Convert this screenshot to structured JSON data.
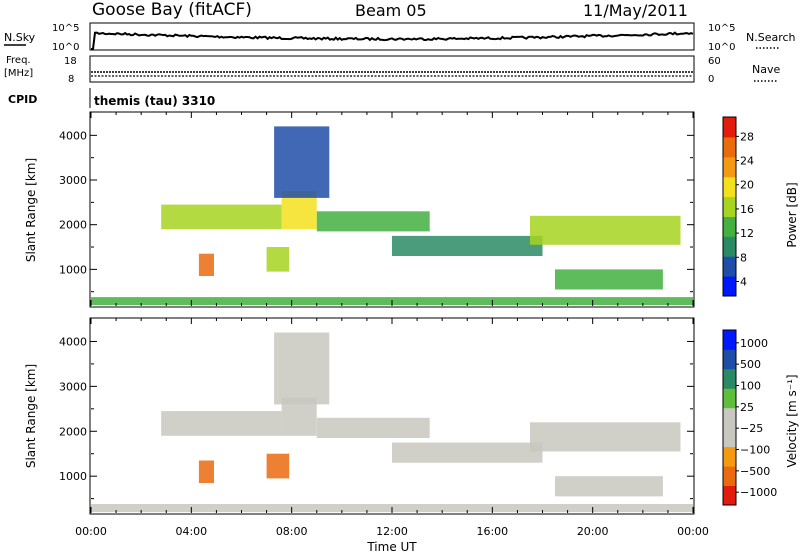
{
  "header": {
    "station": "Goose Bay (fitACF)",
    "beam": "Beam 05",
    "date": "11/May/2011"
  },
  "strips": {
    "nsky": {
      "label": "N.Sky",
      "ticks": [
        "10^5",
        "10^0"
      ],
      "right_label": "N.Search",
      "right_ticks": [
        "10^5",
        "10^0"
      ]
    },
    "freq": {
      "label_line1": "Freq.",
      "label_line2": "[MHz]",
      "ticks": [
        "18",
        "8"
      ],
      "right_label": "Nave",
      "right_ticks": [
        "60",
        "0"
      ]
    },
    "cpid": {
      "label": "CPID",
      "value": "themis (tau) 3310"
    }
  },
  "colors": {
    "power": [
      "#0018ff",
      "#1f4ea8",
      "#2b8a66",
      "#43b03f",
      "#a6d41f",
      "#f3e11c",
      "#f39a12",
      "#ea6a0e",
      "#e31b0c"
    ],
    "velocity": [
      "#e31b0c",
      "#ea6a0e",
      "#f39a12",
      "#c8c8c0",
      "#c8c8c0",
      "#5fbe3a",
      "#2b8a66",
      "#1f4ea8",
      "#0018ff"
    ],
    "ground_scatter": "#c8c8c0"
  },
  "chart_data": [
    {
      "type": "heatmap",
      "title": "Power",
      "xlabel": "",
      "ylabel": "Slant Range [km]",
      "xlim_hours": [
        0,
        24
      ],
      "ylim_km": [
        180,
        4500
      ],
      "yticks": [
        "4000",
        "3000",
        "2000",
        "1000"
      ],
      "yticks_km": [
        4000,
        3000,
        2000,
        1000
      ],
      "colorbar": {
        "label": "Power [dB]",
        "ticks": [
          "28",
          "24",
          "20",
          "16",
          "12",
          "8",
          "4"
        ],
        "range": [
          0,
          30
        ]
      },
      "scatter_regions": [
        {
          "t_start": 2.8,
          "t_end": 7.6,
          "range_start": 1900,
          "range_end": 2450,
          "power": 14
        },
        {
          "t_start": 7.6,
          "t_end": 9.0,
          "range_start": 1900,
          "range_end": 2750,
          "power": 18
        },
        {
          "t_start": 9.0,
          "t_end": 13.5,
          "range_start": 1850,
          "range_end": 2300,
          "power": 12
        },
        {
          "t_start": 12.0,
          "t_end": 18.0,
          "range_start": 1300,
          "range_end": 1750,
          "power": 8
        },
        {
          "t_start": 17.5,
          "t_end": 23.5,
          "range_start": 1550,
          "range_end": 2200,
          "power": 16
        },
        {
          "t_start": 18.5,
          "t_end": 22.8,
          "range_start": 550,
          "range_end": 1000,
          "power": 10
        },
        {
          "t_start": 4.3,
          "t_end": 4.9,
          "range_start": 850,
          "range_end": 1350,
          "power": 26
        },
        {
          "t_start": 7.0,
          "t_end": 7.9,
          "range_start": 950,
          "range_end": 1500,
          "power": 14
        },
        {
          "t_start": 7.3,
          "t_end": 9.5,
          "range_start": 2600,
          "range_end": 4200,
          "power": 6
        },
        {
          "t_start": 0.0,
          "t_end": 24.0,
          "range_start": 200,
          "range_end": 380,
          "power": 10
        }
      ]
    },
    {
      "type": "heatmap",
      "title": "Velocity",
      "xlabel": "Time UT",
      "ylabel": "Slant Range [km]",
      "xlim_hours": [
        0,
        24
      ],
      "ylim_km": [
        180,
        4500
      ],
      "xticks": [
        "00:00",
        "04:00",
        "08:00",
        "12:00",
        "16:00",
        "20:00",
        "00:00"
      ],
      "xticks_hours": [
        0,
        4,
        8,
        12,
        16,
        20,
        24
      ],
      "yticks": [
        "4000",
        "3000",
        "2000",
        "1000"
      ],
      "yticks_km": [
        4000,
        3000,
        2000,
        1000
      ],
      "colorbar": {
        "label": "Velocity [m s⁻¹]",
        "ticks": [
          "1000",
          "500",
          "100",
          "25",
          "−25",
          "−100",
          "−500",
          "−1000"
        ],
        "range": [
          -1000,
          1000
        ]
      },
      "scatter_regions": [
        {
          "t_start": 2.8,
          "t_end": 7.6,
          "range_start": 1900,
          "range_end": 2450,
          "velocity": 0
        },
        {
          "t_start": 7.6,
          "t_end": 9.0,
          "range_start": 1900,
          "range_end": 2750,
          "velocity": 0
        },
        {
          "t_start": 9.0,
          "t_end": 13.5,
          "range_start": 1850,
          "range_end": 2300,
          "velocity": 0
        },
        {
          "t_start": 12.0,
          "t_end": 18.0,
          "range_start": 1300,
          "range_end": 1750,
          "velocity": 0
        },
        {
          "t_start": 17.5,
          "t_end": 23.5,
          "range_start": 1550,
          "range_end": 2200,
          "velocity": 0
        },
        {
          "t_start": 18.5,
          "t_end": 22.8,
          "range_start": 550,
          "range_end": 1000,
          "velocity": 0
        },
        {
          "t_start": 4.3,
          "t_end": 4.9,
          "range_start": 850,
          "range_end": 1350,
          "velocity": -300
        },
        {
          "t_start": 7.0,
          "t_end": 7.9,
          "range_start": 950,
          "range_end": 1500,
          "velocity": -300
        },
        {
          "t_start": 7.3,
          "t_end": 9.5,
          "range_start": 2600,
          "range_end": 4200,
          "velocity": 0
        },
        {
          "t_start": 0.0,
          "t_end": 24.0,
          "range_start": 200,
          "range_end": 380,
          "velocity": 0
        }
      ]
    }
  ]
}
